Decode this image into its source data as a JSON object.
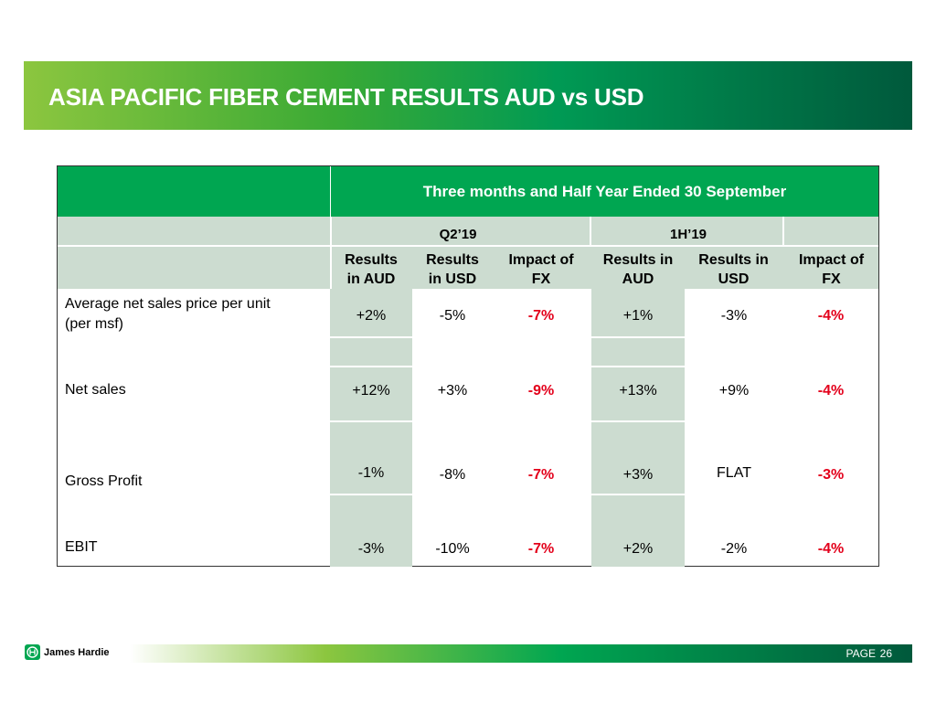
{
  "slide": {
    "title": "ASIA PACIFIC FIBER CEMENT RESULTS AUD vs USD",
    "page_label": "PAGE",
    "page_number": "26",
    "brand": "James Hardie"
  },
  "table": {
    "caption": "Three months and Half Year Ended 30 September",
    "periods": [
      "Q2’19",
      "1H’19"
    ],
    "columns": [
      [
        "Results",
        "in AUD"
      ],
      [
        "Results",
        "in USD"
      ],
      [
        "Impact of",
        "FX"
      ],
      [
        "Results in",
        "AUD"
      ],
      [
        "Results in",
        "USD"
      ],
      [
        "Impact of",
        "FX"
      ]
    ],
    "rows": [
      {
        "label": [
          "Average net sales price per unit",
          "(per msf)"
        ],
        "values": [
          "+2%",
          "-5%",
          "-7%",
          "+1%",
          "-3%",
          "-4%"
        ]
      },
      {
        "label": [
          "Net sales"
        ],
        "values": [
          "+12%",
          "+3%",
          "-9%",
          "+13%",
          "+9%",
          "-4%"
        ]
      },
      {
        "label": [
          "Gross  Profit"
        ],
        "values": [
          "-1%",
          "-8%",
          "-7%",
          "+3%",
          "FLAT",
          "-3%"
        ]
      },
      {
        "label": [
          "EBIT"
        ],
        "values": [
          "-3%",
          "-10%",
          "-7%",
          "+2%",
          "-2%",
          "-4%"
        ]
      }
    ]
  },
  "colors": {
    "accent_green": "#00a651",
    "light_green": "#ccdcd0",
    "negative_red": "#e3001b"
  }
}
